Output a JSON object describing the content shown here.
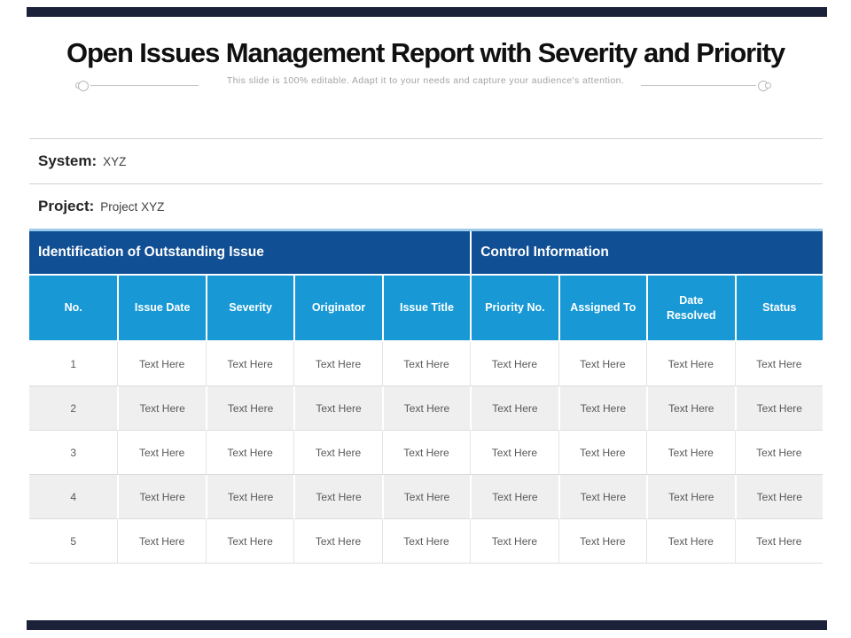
{
  "title": "Open Issues Management Report with Severity and Priority",
  "subtitle": "This slide is 100% editable. Adapt it to your needs and capture your audience's attention.",
  "fields": {
    "system_label": "System:",
    "system_value": "XYZ",
    "project_label": "Project:",
    "project_value": "Project XYZ"
  },
  "table": {
    "group_headers": [
      {
        "label": "Identification of Outstanding Issue",
        "colspan": 5
      },
      {
        "label": "Control Information",
        "colspan": 4
      }
    ],
    "columns": [
      "No.",
      "Issue Date",
      "Severity",
      "Originator",
      "Issue Title",
      "Priority No.",
      "Assigned To",
      "Date Resolved",
      "Status"
    ],
    "rows": [
      [
        "1",
        "Text Here",
        "Text Here",
        "Text Here",
        "Text Here",
        "Text Here",
        "Text Here",
        "Text Here",
        "Text Here"
      ],
      [
        "2",
        "Text Here",
        "Text Here",
        "Text Here",
        "Text Here",
        "Text Here",
        "Text Here",
        "Text Here",
        "Text Here"
      ],
      [
        "3",
        "Text Here",
        "Text Here",
        "Text Here",
        "Text Here",
        "Text Here",
        "Text Here",
        "Text Here",
        "Text Here"
      ],
      [
        "4",
        "Text Here",
        "Text Here",
        "Text Here",
        "Text Here",
        "Text Here",
        "Text Here",
        "Text Here",
        "Text Here"
      ],
      [
        "5",
        "Text Here",
        "Text Here",
        "Text Here",
        "Text Here",
        "Text Here",
        "Text Here",
        "Text Here",
        "Text Here"
      ]
    ]
  },
  "colors": {
    "decor_bar": "#1b2139",
    "group_header_bg": "#114f94",
    "column_header_bg": "#1899d6",
    "row_alt_bg": "#efefef",
    "body_text": "#595959",
    "separator_line": "#d2d2d2"
  }
}
